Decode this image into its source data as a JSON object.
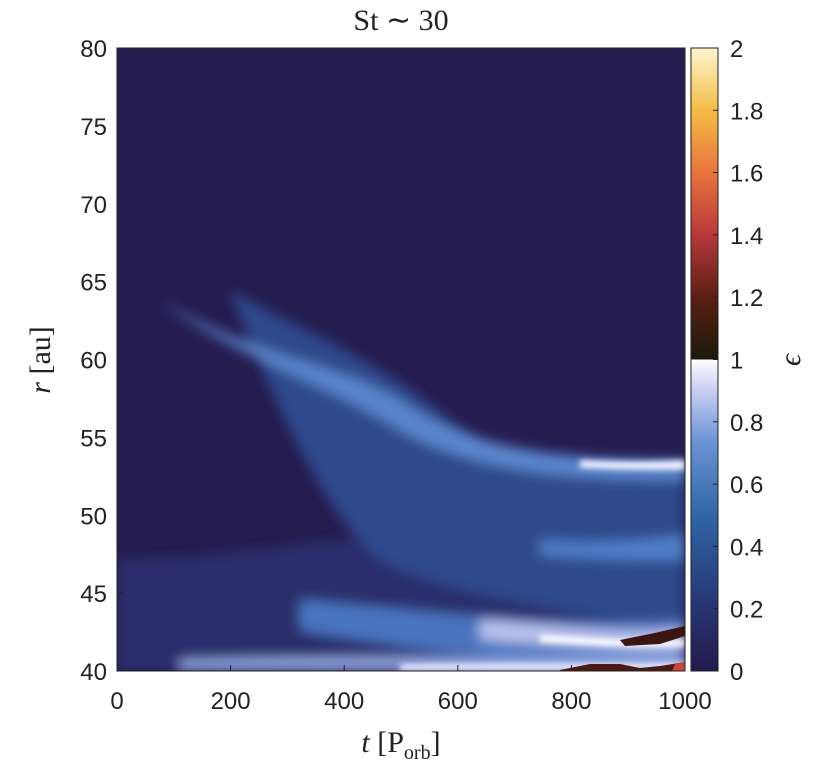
{
  "chart_data": {
    "type": "heatmap",
    "title": "St ∼ 30",
    "xlabel": [
      "t",
      " [P",
      "orb",
      "]"
    ],
    "ylabel": [
      "r",
      " [au]"
    ],
    "colorbar_label": "ϵ",
    "xlim": [
      0,
      1000
    ],
    "xticks": [
      0,
      200,
      400,
      600,
      800,
      1000
    ],
    "ylim": [
      40,
      80
    ],
    "yticks": [
      40,
      45,
      50,
      55,
      60,
      65,
      70,
      75,
      80
    ],
    "clim": [
      0,
      2
    ],
    "cticks": [
      0,
      0.2,
      0.4,
      0.6,
      0.8,
      1,
      1.2,
      1.4,
      1.6,
      1.8,
      2
    ]
  }
}
